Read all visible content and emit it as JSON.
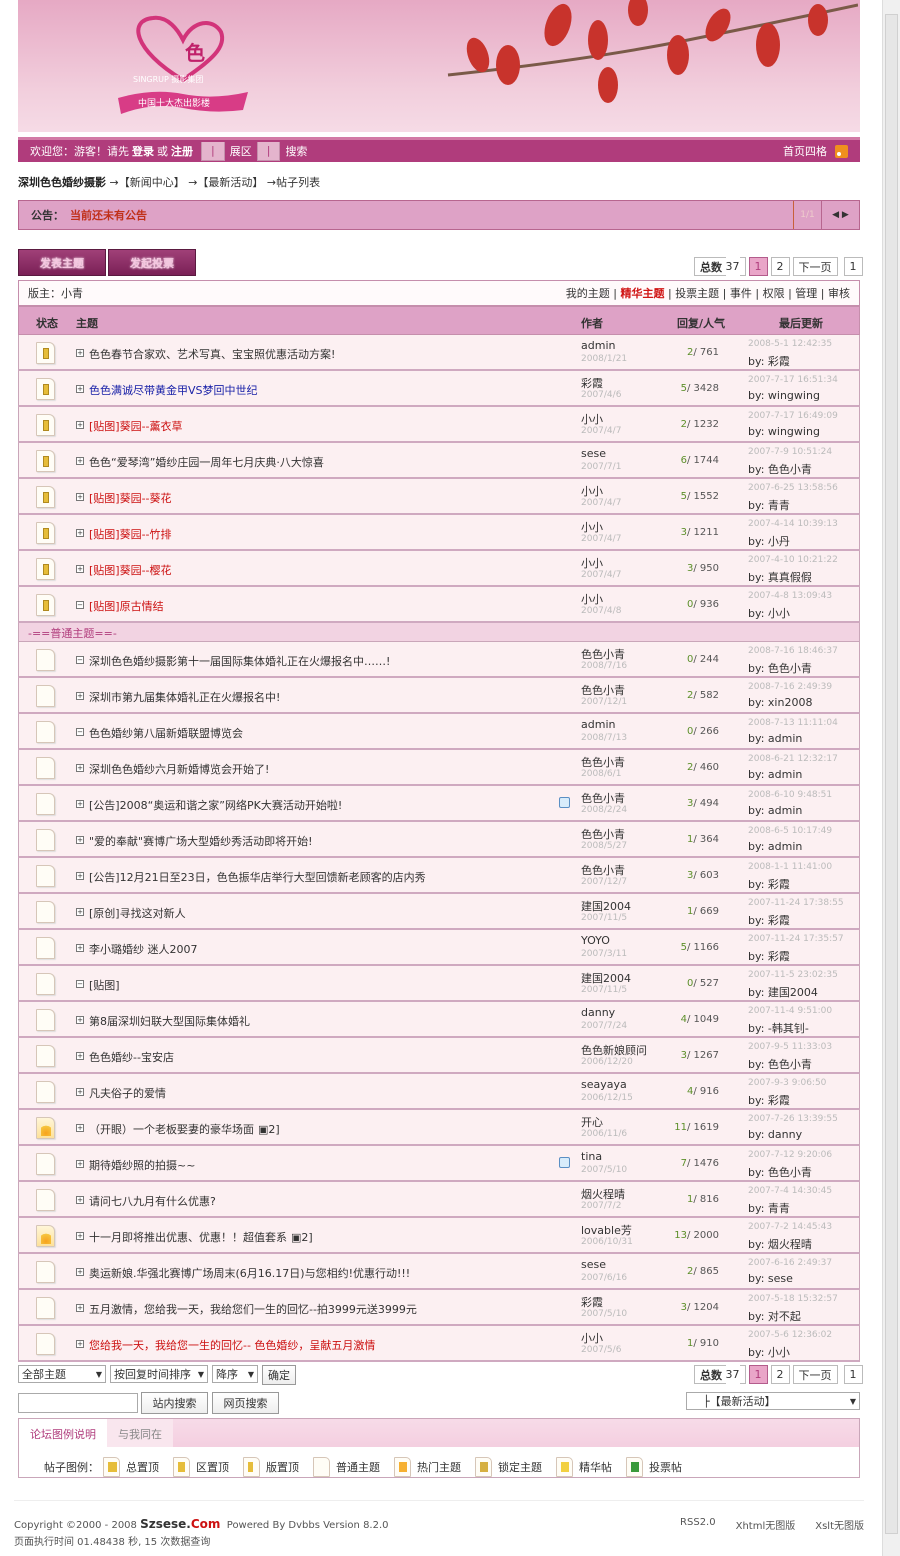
{
  "logo": {
    "brand_cn": "色色",
    "brand_en": "SINGRUP",
    "tagline": "摄影集团",
    "ribbon": "中国十大杰出影楼"
  },
  "nav": {
    "welcome": "欢迎您：游客！请先",
    "login": "登录",
    "or": "或",
    "register": "注册",
    "exhibit": "展区",
    "search": "搜索",
    "home_style": "首页四格",
    "rss_icon": "rss-icon"
  },
  "breadcrumb": {
    "site": "深圳色色婚纱摄影",
    "path": "→【新闻中心】 →【最新活动】 →帖子列表"
  },
  "notice": {
    "label": "公告：",
    "text": "当前还未有公告",
    "page": "1/1"
  },
  "buttons": {
    "post": "发表主题",
    "poll": "发起投票"
  },
  "pager": {
    "total_label": "总数",
    "total": "37",
    "pages": [
      "1",
      "2"
    ],
    "next": "下一页",
    "jump": "1"
  },
  "moderator": {
    "label": "版主：小青",
    "links": [
      "我的主题",
      "精华主题",
      "投票主题",
      "事件",
      "权限",
      "管理",
      "审核"
    ]
  },
  "thead": {
    "status": "状态",
    "topic": "主题",
    "author": "作者",
    "replies": "回复/人气",
    "last": "最后更新"
  },
  "separator": "-==普通主题==-",
  "sticky_rows": [
    {
      "t": "色色春节合家欢、艺术写真、宝宝照优惠活动方案!",
      "c": "",
      "au": "admin",
      "ad": "2008/1/21",
      "r": "2",
      "v": "761",
      "lt": "2008-5-1 12:42:35",
      "lb": "彩霞"
    },
    {
      "t": "色色满诚尽带黄金甲VS梦回中世纪",
      "c": "blue",
      "au": "彩霞",
      "ad": "2007/4/6",
      "r": "5",
      "v": "3428",
      "lt": "2007-7-17 16:51:34",
      "lb": "wingwing"
    },
    {
      "t": "[贴图]葵园--薰衣草",
      "c": "red",
      "au": "小小",
      "ad": "2007/4/7",
      "r": "2",
      "v": "1232",
      "lt": "2007-7-17 16:49:09",
      "lb": "wingwing"
    },
    {
      "t": "色色“爱琴湾”婚纱庄园一周年七月庆典·八大惊喜",
      "c": "",
      "au": "sese",
      "ad": "2007/7/1",
      "r": "6",
      "v": "1744",
      "lt": "2007-7-9 10:51:24",
      "lb": "色色小青"
    },
    {
      "t": "[贴图]葵园--葵花",
      "c": "red",
      "au": "小小",
      "ad": "2007/4/7",
      "r": "5",
      "v": "1552",
      "lt": "2007-6-25 13:58:56",
      "lb": "青青"
    },
    {
      "t": "[贴图]葵园--竹排",
      "c": "red",
      "au": "小小",
      "ad": "2007/4/7",
      "r": "3",
      "v": "1211",
      "lt": "2007-4-14 10:39:13",
      "lb": "小丹"
    },
    {
      "t": "[贴图]葵园--樱花",
      "c": "red",
      "au": "小小",
      "ad": "2007/4/7",
      "r": "3",
      "v": "950",
      "lt": "2007-4-10 10:21:22",
      "lb": "真真假假"
    },
    {
      "t": "[贴图]原古情结",
      "c": "red",
      "au": "小小",
      "ad": "2007/4/8",
      "r": "0",
      "v": "936",
      "lt": "2007-4-8 13:09:43",
      "lb": "小小",
      "ex": "−"
    }
  ],
  "normal_rows": [
    {
      "t": "深圳色色婚纱摄影第十一届国际集体婚礼正在火爆报名中……!",
      "au": "色色小青",
      "ad": "2008/7/16",
      "r": "0",
      "v": "244",
      "lt": "2008-7-16 18:46:37",
      "lb": "色色小青",
      "ex": "−"
    },
    {
      "t": "深圳市第九届集体婚礼正在火爆报名中!",
      "au": "色色小青",
      "ad": "2007/12/1",
      "r": "2",
      "v": "582",
      "lt": "2008-7-16 2:49:39",
      "lb": "xin2008"
    },
    {
      "t": "色色婚纱第八届新婚联盟博览会",
      "au": "admin",
      "ad": "2008/7/13",
      "r": "0",
      "v": "266",
      "lt": "2008-7-13 11:11:04",
      "lb": "admin",
      "ex": "−"
    },
    {
      "t": "深圳色色婚纱六月新婚博览会开始了!",
      "au": "色色小青",
      "ad": "2008/6/1",
      "r": "2",
      "v": "460",
      "lt": "2008-6-21 12:32:17",
      "lb": "admin"
    },
    {
      "t": "[公告]2008“奥运和谐之家”网络PK大赛活动开始啦!",
      "au": "色色小青",
      "ad": "2008/2/24",
      "r": "3",
      "v": "494",
      "lt": "2008-6-10 9:48:51",
      "lb": "admin",
      "s": true
    },
    {
      "t": "\"爱的奉献\"赛博广场大型婚纱秀活动即将开始!",
      "au": "色色小青",
      "ad": "2008/5/27",
      "r": "1",
      "v": "364",
      "lt": "2008-6-5 10:17:49",
      "lb": "admin"
    },
    {
      "t": "[公告]12月21日至23日，色色振华店举行大型回馈新老顾客的店内秀",
      "au": "色色小青",
      "ad": "2007/12/7",
      "r": "3",
      "v": "603",
      "lt": "2008-1-1 11:41:00",
      "lb": "彩霞"
    },
    {
      "t": "[原创]寻找这对新人",
      "au": "建国2004",
      "ad": "2007/11/5",
      "r": "1",
      "v": "669",
      "lt": "2007-11-24 17:38:55",
      "lb": "彩霞"
    },
    {
      "t": "李小璐婚纱 迷人2007",
      "au": "YOYO",
      "ad": "2007/3/11",
      "r": "5",
      "v": "1166",
      "lt": "2007-11-24 17:35:57",
      "lb": "彩霞"
    },
    {
      "t": "[贴图]",
      "au": "建国2004",
      "ad": "2007/11/5",
      "r": "0",
      "v": "527",
      "lt": "2007-11-5 23:02:35",
      "lb": "建国2004",
      "ex": "−"
    },
    {
      "t": "第8届深圳妇联大型国际集体婚礼",
      "au": "danny",
      "ad": "2007/7/24",
      "r": "4",
      "v": "1049",
      "lt": "2007-11-4 9:51:00",
      "lb": "-韩其钊-"
    },
    {
      "t": "色色婚纱--宝安店",
      "au": "色色新娘顾问",
      "ad": "2006/12/20",
      "r": "3",
      "v": "1267",
      "lt": "2007-9-5 11:33:03",
      "lb": "色色小青"
    },
    {
      "t": "凡夫俗子的爱情",
      "au": "seayaya",
      "ad": "2006/12/15",
      "r": "4",
      "v": "916",
      "lt": "2007-9-3 9:06:50",
      "lb": "彩霞"
    },
    {
      "t": "（开眼）一个老板娶妻的豪华场面",
      "pg": "2]",
      "au": "开心",
      "ad": "2006/11/6",
      "r": "11",
      "v": "1619",
      "lt": "2007-7-26 13:39:55",
      "lb": "danny",
      "hot": true
    },
    {
      "t": "期待婚纱照的拍摄~~",
      "au": "tina",
      "ad": "2007/5/10",
      "r": "7",
      "v": "1476",
      "lt": "2007-7-12 9:20:06",
      "lb": "色色小青",
      "s": true
    },
    {
      "t": "请问七八九月有什么优惠?",
      "au": "烟火程晴",
      "ad": "2007/7/2",
      "r": "1",
      "v": "816",
      "lt": "2007-7-4 14:30:45",
      "lb": "青青"
    },
    {
      "t": "十一月即将推出优惠、优惠！！超值套系",
      "pg": "2]",
      "au": "lovable芳",
      "ad": "2006/10/31",
      "r": "13",
      "v": "2000",
      "lt": "2007-7-2 14:45:43",
      "lb": "烟火程晴",
      "hot": true
    },
    {
      "t": "奥运新娘.华强北赛博广场周末(6月16.17日)与您相约!优惠行动!!!",
      "au": "sese",
      "ad": "2007/6/16",
      "r": "2",
      "v": "865",
      "lt": "2007-6-16 2:49:37",
      "lb": "sese"
    },
    {
      "t": "五月激情，您给我一天，我给您们一生的回忆--拍3999元送3999元",
      "au": "彩霞",
      "ad": "2007/5/10",
      "r": "3",
      "v": "1204",
      "lt": "2007-5-18 15:32:57",
      "lb": "对不起"
    },
    {
      "t": "您给我一天，我给您一生的回忆-- 色色婚纱，呈献五月激情",
      "c": "red",
      "au": "小小",
      "ad": "2007/5/6",
      "r": "1",
      "v": "910",
      "lt": "2007-5-6 12:36:02",
      "lb": "小小"
    }
  ],
  "by_label": "by:",
  "filters": {
    "scope": "全部主题",
    "sort": "按回复时间排序",
    "order": "降序",
    "confirm": "确定",
    "site_search": "站内搜索",
    "web_search": "网页搜索",
    "search_value": "",
    "jump_forum": "├【最新活动】"
  },
  "legend": {
    "tabs": [
      "论坛图例说明",
      "与我同在"
    ],
    "label": "帖子图例：",
    "items": [
      "总置顶",
      "区置顶",
      "版置顶",
      "普通主题",
      "热门主题",
      "锁定主题",
      "精华帖",
      "投票帖"
    ]
  },
  "footer": {
    "copyright": "Copyright ©2000 - 2008",
    "brand_a": "Szsese.",
    "brand_b": "Com",
    "powered": "Powered By Dvbbs Version 8.2.0",
    "exec": "页面执行时间 01.48438 秒, 15 次数据查询",
    "links": [
      "RSS2.0",
      "Xhtml无图版",
      "Xslt无图版"
    ]
  },
  "colors": {
    "accent": "#b03c7c",
    "table_header": "#dea2c6",
    "row_bg": "#fcf0f2",
    "hot_title": "#cc1111",
    "blue_title": "#1a22a8"
  }
}
